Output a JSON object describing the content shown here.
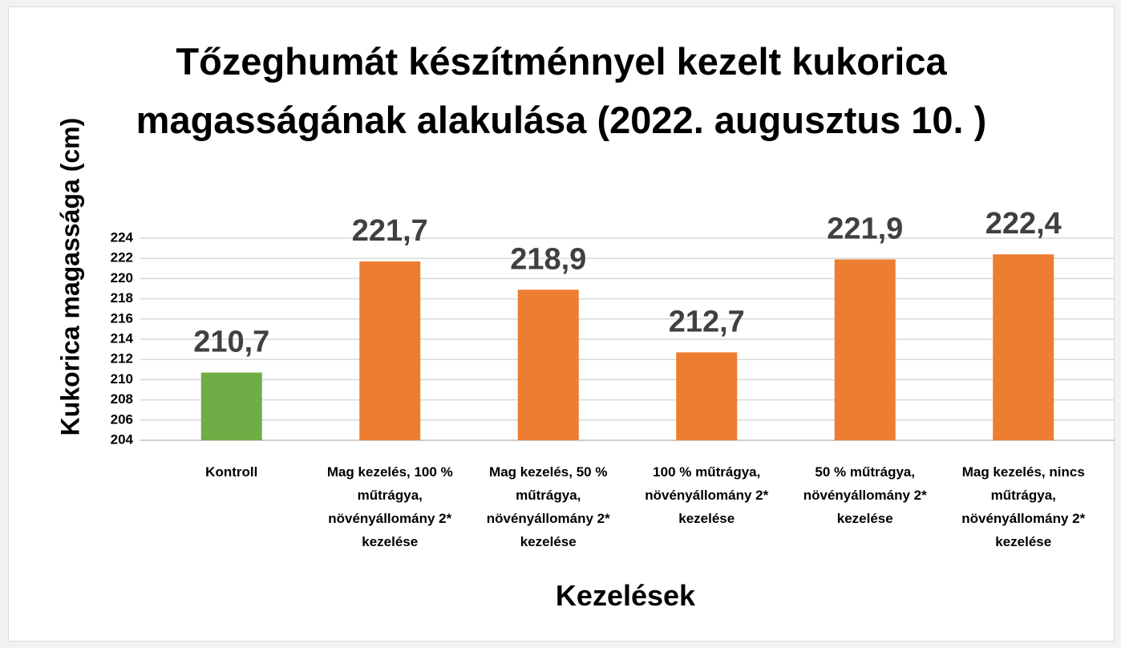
{
  "chart_data": {
    "type": "bar",
    "title": "Tőzeghumát készítménnyel kezelt kukorica magasságának alakulása (2022. augusztus 10. )",
    "x_label": "Kezelések",
    "y_label": "Kukorica magassága (cm)",
    "categories": [
      "Kontroll",
      "Mag kezelés, 100 % műtrágya, növényállomány 2* kezelése",
      "Mag kezelés, 50 % műtrágya, növényállomány 2* kezelése",
      "100 % műtrágya, növényállomány 2* kezelése",
      "50 % műtrágya, növényállomány 2* kezelése",
      "Mag kezelés, nincs műtrágya, növényállomány 2* kezelése"
    ],
    "values": [
      210.7,
      221.7,
      218.9,
      212.7,
      221.9,
      222.4
    ],
    "value_labels": [
      "210,7",
      "221,7",
      "218,9",
      "212,7",
      "221,9",
      "222,4"
    ],
    "colors": [
      "#70ad47",
      "#ed7d31",
      "#ed7d31",
      "#ed7d31",
      "#ed7d31",
      "#ed7d31"
    ],
    "ylim": [
      204,
      224
    ],
    "yticks": [
      204,
      206,
      208,
      210,
      212,
      214,
      216,
      218,
      220,
      222,
      224
    ],
    "grid": true
  }
}
